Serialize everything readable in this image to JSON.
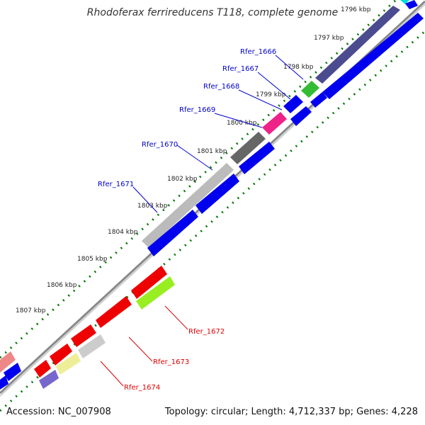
{
  "title": "Rhodoferax ferrireducens T118, complete genome",
  "accession_text": "Accession: NC_007908",
  "stats_text": "Topology: circular; Length: 4,712,337 bp; Genes: 4,228",
  "colors": {
    "forward_label": "#0000cc",
    "reverse_label": "#dd0000",
    "ticks": "#007700",
    "backbone": "#888888"
  },
  "kbp_labels": [
    "1796 kbp",
    "1797 kbp",
    "1798 kbp",
    "1799 kbp",
    "1800 kbp",
    "1801 kbp",
    "1802 kbp",
    "1803 kbp",
    "1804 kbp",
    "1805 kbp",
    "1806 kbp",
    "1807 kbp"
  ],
  "gene_labels": [
    "Rfer_1666",
    "Rfer_1667",
    "Rfer_1668",
    "Rfer_1669",
    "Rfer_1670",
    "Rfer_1671",
    "Rfer_1672",
    "Rfer_1673",
    "Rfer_1674"
  ]
}
